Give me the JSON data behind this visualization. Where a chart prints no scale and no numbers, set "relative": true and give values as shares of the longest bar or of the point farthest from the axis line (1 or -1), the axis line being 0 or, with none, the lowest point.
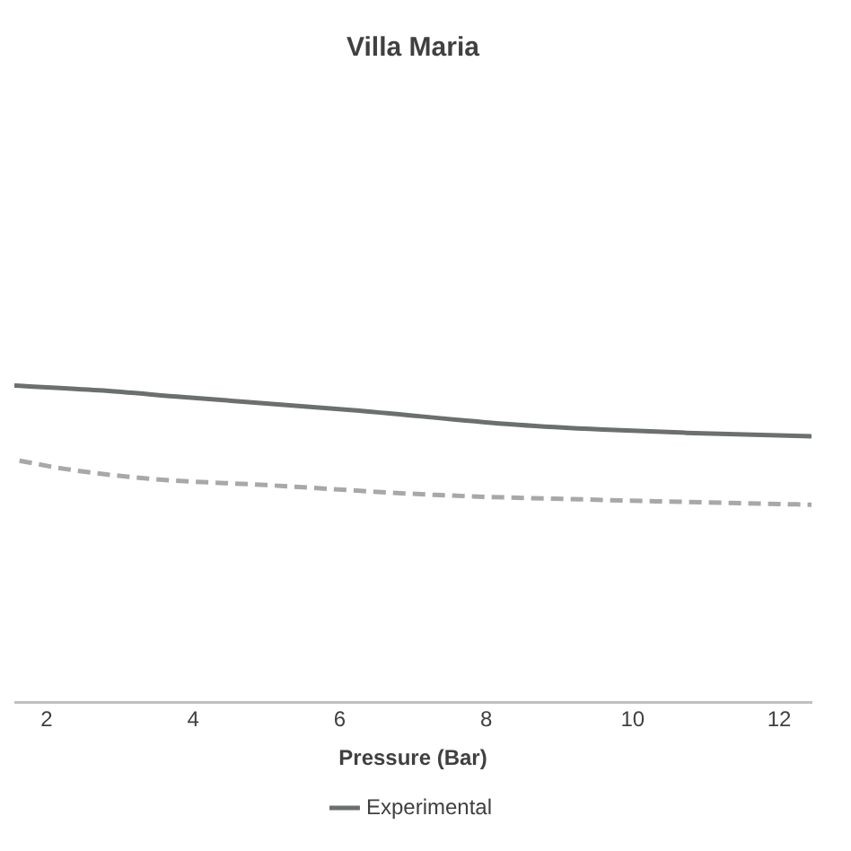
{
  "chart_data": {
    "type": "line",
    "title": "Villa Maria",
    "xlabel": "Pressure (Bar)",
    "relative": true,
    "xlim": [
      1.56,
      12.44
    ],
    "xticks": [
      2,
      4,
      6,
      8,
      10,
      12
    ],
    "grid": false,
    "legend": "bottom",
    "marker": "none",
    "series": [
      {
        "name": "Experimental",
        "color": "#6b6f6f",
        "line_style": "solid",
        "x": [
          1.56,
          2.71,
          3.85,
          6.15,
          8.44,
          9.59,
          10.73,
          12.44
        ],
        "values": [
          1.0,
          0.985,
          0.964,
          0.923,
          0.876,
          0.861,
          0.851,
          0.84
        ]
      },
      {
        "color": "#a8a8a8",
        "line_style": "dashed",
        "x": [
          1.63,
          2.25,
          3.4,
          5.0,
          7.3,
          9.59,
          12.44
        ],
        "values": [
          0.763,
          0.737,
          0.706,
          0.686,
          0.655,
          0.639,
          0.624
        ]
      }
    ]
  }
}
